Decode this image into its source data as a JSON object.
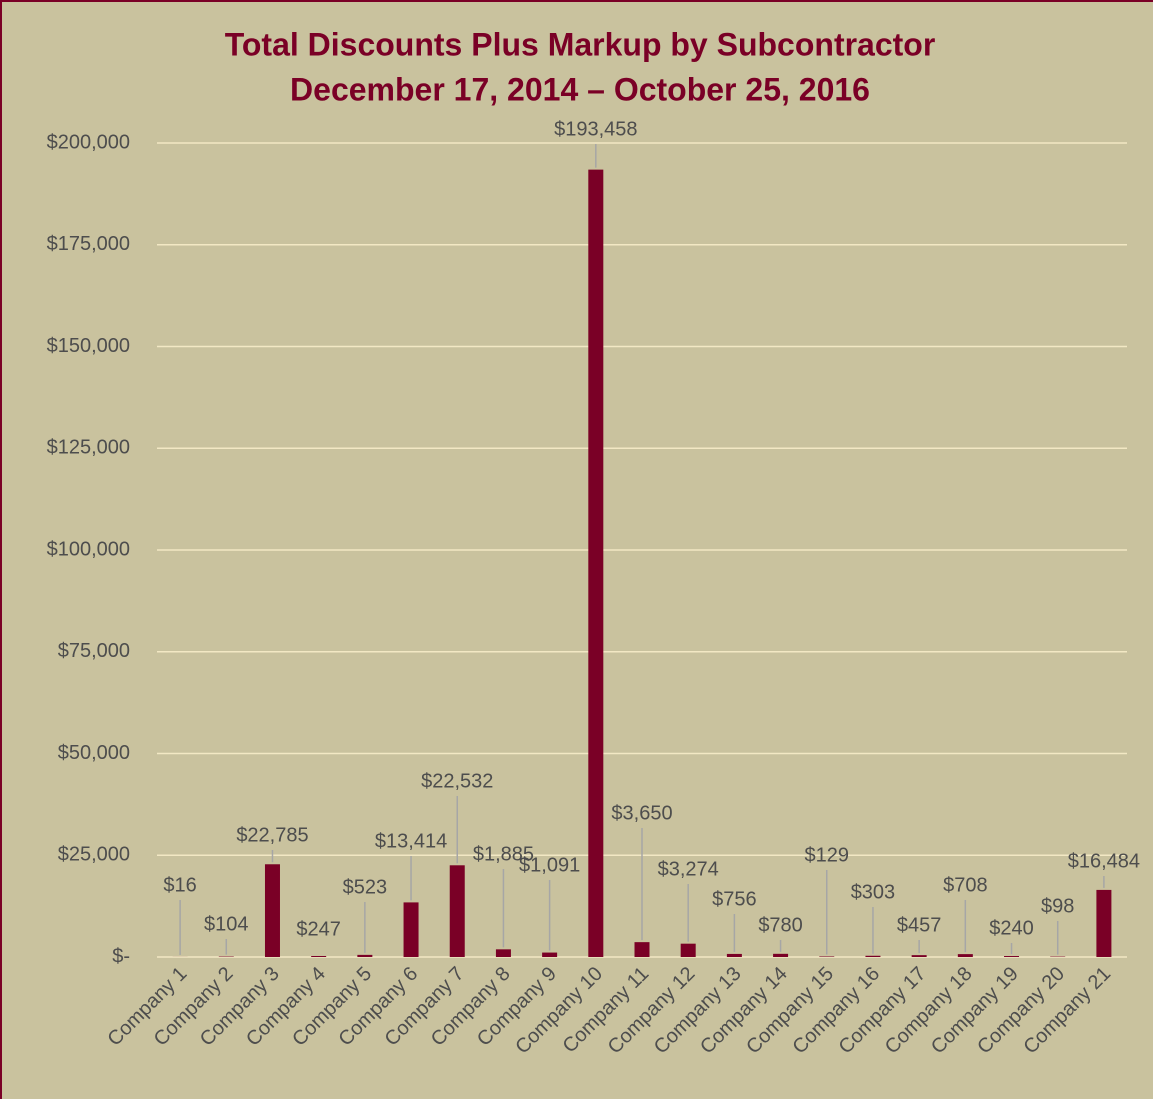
{
  "chart_data": {
    "type": "bar",
    "title": "Total Discounts Plus Markup by Subcontractor",
    "subtitle": "December 17, 2014 – October 25, 2016",
    "categories": [
      "Company 1",
      "Company 2",
      "Company 3",
      "Company 4",
      "Company 5",
      "Company 6",
      "Company 7",
      "Company 8",
      "Company 9",
      "Company 10",
      "Company 11",
      "Company 12",
      "Company 13",
      "Company 14",
      "Company 15",
      "Company 16",
      "Company 17",
      "Company 18",
      "Company 19",
      "Company 20",
      "Company 21"
    ],
    "values": [
      16,
      104,
      22785,
      247,
      523,
      13414,
      22532,
      1885,
      1091,
      193458,
      3650,
      3274,
      756,
      780,
      129,
      303,
      457,
      708,
      240,
      98,
      16484
    ],
    "value_labels": [
      "$16",
      "$104",
      "$22,785",
      "$247",
      "$523",
      "$13,414",
      "$22,532",
      "$1,885",
      "$1,091",
      "$193,458",
      "$3,650",
      "$3,274",
      "$756",
      "$780",
      "$129",
      "$303",
      "$457",
      "$708",
      "$240",
      "$98",
      "$16,484"
    ],
    "color": "#7a0026",
    "ylim": [
      0,
      200000
    ],
    "yticks": [
      {
        "value": 0,
        "label": "$-"
      },
      {
        "value": 25000,
        "label": "$25,000"
      },
      {
        "value": 50000,
        "label": "$50,000"
      },
      {
        "value": 75000,
        "label": "$75,000"
      },
      {
        "value": 100000,
        "label": "$100,000"
      },
      {
        "value": 125000,
        "label": "$125,000"
      },
      {
        "value": 150000,
        "label": "$150,000"
      },
      {
        "value": 175000,
        "label": "$175,000"
      },
      {
        "value": 200000,
        "label": "$200,000"
      }
    ],
    "grid": true
  }
}
